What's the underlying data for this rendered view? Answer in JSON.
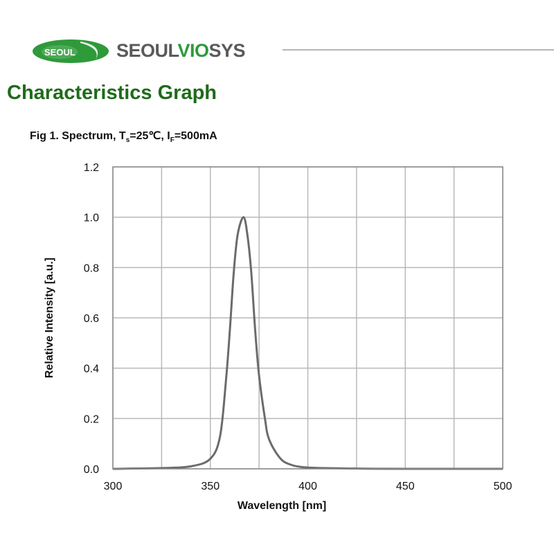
{
  "header": {
    "logo_badge_text": "SEOUL",
    "brand_part1": "SEOUL",
    "brand_part2": "VIO",
    "brand_part3": "SYS",
    "colors": {
      "green": "#2e9a3a",
      "title_green": "#1f6b1a",
      "gray": "#5a5a5a",
      "curve": "#6b6b6b"
    }
  },
  "page_title": "Characteristics Graph",
  "figure": {
    "caption_prefix": "Fig 1. Spectrum, T",
    "caption_sub1": "s",
    "caption_mid": "=25℃, I",
    "caption_sub2": "F",
    "caption_suffix": "=500mA"
  },
  "chart_data": {
    "type": "line",
    "title": "Fig 1. Spectrum, Ts=25℃, IF=500mA",
    "xlabel": "Wavelength [nm]",
    "ylabel": "Relative Intensity [a.u.]",
    "xlim": [
      300,
      500
    ],
    "ylim": [
      0,
      1.2
    ],
    "xticks": [
      300,
      350,
      400,
      450,
      500
    ],
    "yticks": [
      0.0,
      0.2,
      0.4,
      0.6,
      0.8,
      1.0,
      1.2
    ],
    "xtick_labels": [
      "300",
      "350",
      "400",
      "450",
      "500"
    ],
    "ytick_labels": [
      "0.0",
      "0.2",
      "0.4",
      "0.6",
      "0.8",
      "1.0",
      "1.2"
    ],
    "grid": true,
    "x_grid_step": 25,
    "legend": null,
    "series": [
      {
        "name": "Spectrum",
        "x": [
          300,
          325,
          340,
          350,
          355,
          358,
          360,
          362,
          364,
          367,
          369,
          371,
          373,
          375,
          378,
          380,
          385,
          390,
          400,
          425,
          450,
          500
        ],
        "y": [
          0.0,
          0.003,
          0.01,
          0.04,
          0.13,
          0.35,
          0.55,
          0.78,
          0.93,
          1.0,
          0.93,
          0.78,
          0.55,
          0.37,
          0.2,
          0.12,
          0.05,
          0.02,
          0.005,
          0.001,
          0.0,
          0.0
        ]
      }
    ],
    "peak_wavelength_nm": 367
  }
}
